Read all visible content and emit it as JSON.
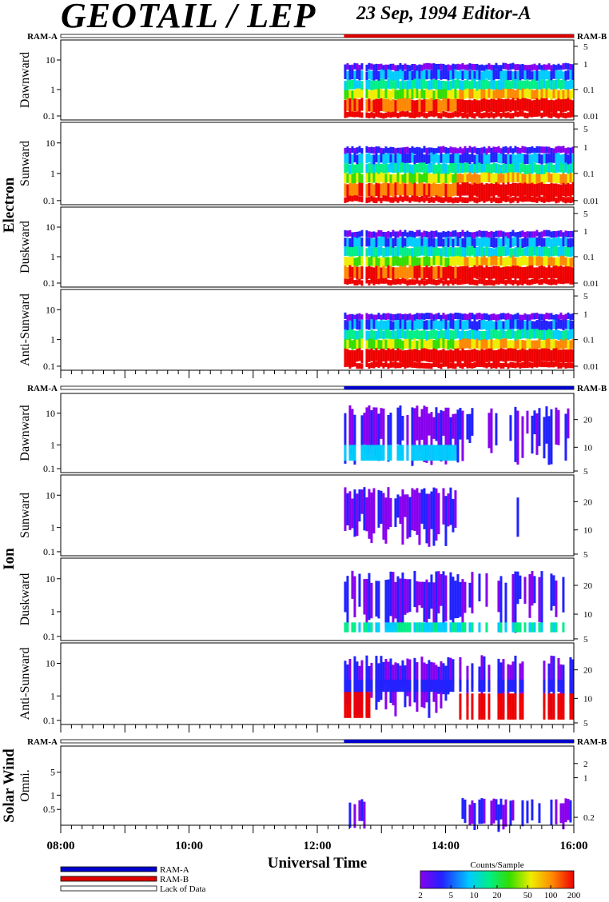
{
  "header": {
    "title": "GEOTAIL / LEP",
    "subtitle": "23 Sep, 1994   Editor-A"
  },
  "colors": {
    "ram_a": "#0000cc",
    "ram_b": "#dd0000",
    "colorbar_stops": [
      "#8800ee",
      "#2222ff",
      "#00ccff",
      "#00ee88",
      "#33dd00",
      "#eeee00",
      "#ff8800",
      "#ee0000"
    ]
  },
  "chart_data": [
    {
      "type": "heatmap",
      "group": "Electron",
      "panel": "Dawnward",
      "ylabel": "Dawnward",
      "left_ticks": [
        "10",
        "1",
        "0.1"
      ],
      "right_ticks": [
        "5",
        "1",
        "0.1",
        "0.01"
      ],
      "data_start": "12:25"
    },
    {
      "type": "heatmap",
      "group": "Electron",
      "panel": "Sunward",
      "ylabel": "Sunward",
      "left_ticks": [
        "10",
        "1",
        "0.1"
      ],
      "right_ticks": [
        "5",
        "1",
        "0.1",
        "0.01"
      ],
      "data_start": "12:25"
    },
    {
      "type": "heatmap",
      "group": "Electron",
      "panel": "Duskward",
      "ylabel": "Duskward",
      "left_ticks": [
        "10",
        "1",
        "0.1"
      ],
      "right_ticks": [
        "5",
        "1",
        "0.1",
        "0.01"
      ],
      "data_start": "12:25"
    },
    {
      "type": "heatmap",
      "group": "Electron",
      "panel": "Anti-Sunward",
      "ylabel": "Anti-Sunward",
      "left_ticks": [
        "10",
        "1",
        "0.1"
      ],
      "right_ticks": [
        "5",
        "1",
        "0.1",
        "0.01"
      ],
      "data_start": "12:25"
    },
    {
      "type": "heatmap",
      "group": "Ion",
      "panel": "Dawnward",
      "ylabel": "Dawnward",
      "left_ticks": [
        "10",
        "1",
        "0.1"
      ],
      "right_ticks": [
        "20",
        "10",
        "5"
      ],
      "data_start": "12:25"
    },
    {
      "type": "heatmap",
      "group": "Ion",
      "panel": "Sunward",
      "ylabel": "Sunward",
      "left_ticks": [
        "10",
        "1",
        "0.1"
      ],
      "right_ticks": [
        "20",
        "10",
        "5"
      ],
      "data_start": "12:25"
    },
    {
      "type": "heatmap",
      "group": "Ion",
      "panel": "Duskward",
      "ylabel": "Duskward",
      "left_ticks": [
        "10",
        "1",
        "0.1"
      ],
      "right_ticks": [
        "20",
        "10",
        "5"
      ],
      "data_start": "12:25"
    },
    {
      "type": "heatmap",
      "group": "Ion",
      "panel": "Anti-Sunward",
      "ylabel": "Anti-Sunward",
      "left_ticks": [
        "10",
        "1",
        "0.1"
      ],
      "right_ticks": [
        "20",
        "10",
        "5"
      ],
      "data_start": "12:25"
    },
    {
      "type": "heatmap",
      "group": "Solar Wind",
      "panel": "Omni.",
      "ylabel": "Omni.",
      "left_ticks": [
        "5",
        "1",
        "0.5"
      ],
      "right_ticks": [
        "2",
        "1",
        "0.2"
      ],
      "data_start": "12:25"
    }
  ],
  "groups": [
    {
      "label": "Electron",
      "mode_bar": {
        "left": "RAM-A",
        "right": "RAM-B",
        "mode": "RAM-B"
      }
    },
    {
      "label": "Ion",
      "mode_bar": {
        "left": "RAM-A",
        "right": "RAM-B",
        "mode": "RAM-A"
      }
    },
    {
      "label": "Solar Wind",
      "mode_bar": {
        "left": "RAM-A",
        "right": "RAM-B",
        "mode": "RAM-A"
      }
    }
  ],
  "xaxis": {
    "label": "Universal Time",
    "ticks": [
      "08:00",
      "10:00",
      "12:00",
      "14:00",
      "16:00"
    ],
    "start": "08:00",
    "end": "16:00"
  },
  "legend": {
    "items": [
      {
        "label": "RAM-A",
        "color": "#0000cc"
      },
      {
        "label": "RAM-B",
        "color": "#dd0000"
      },
      {
        "label": "Lack of Data",
        "color": "#ffffff"
      }
    ]
  },
  "colorbar": {
    "title": "Counts/Sample",
    "ticks": [
      "2",
      "5",
      "10",
      "20",
      "50",
      "100",
      "200"
    ]
  }
}
